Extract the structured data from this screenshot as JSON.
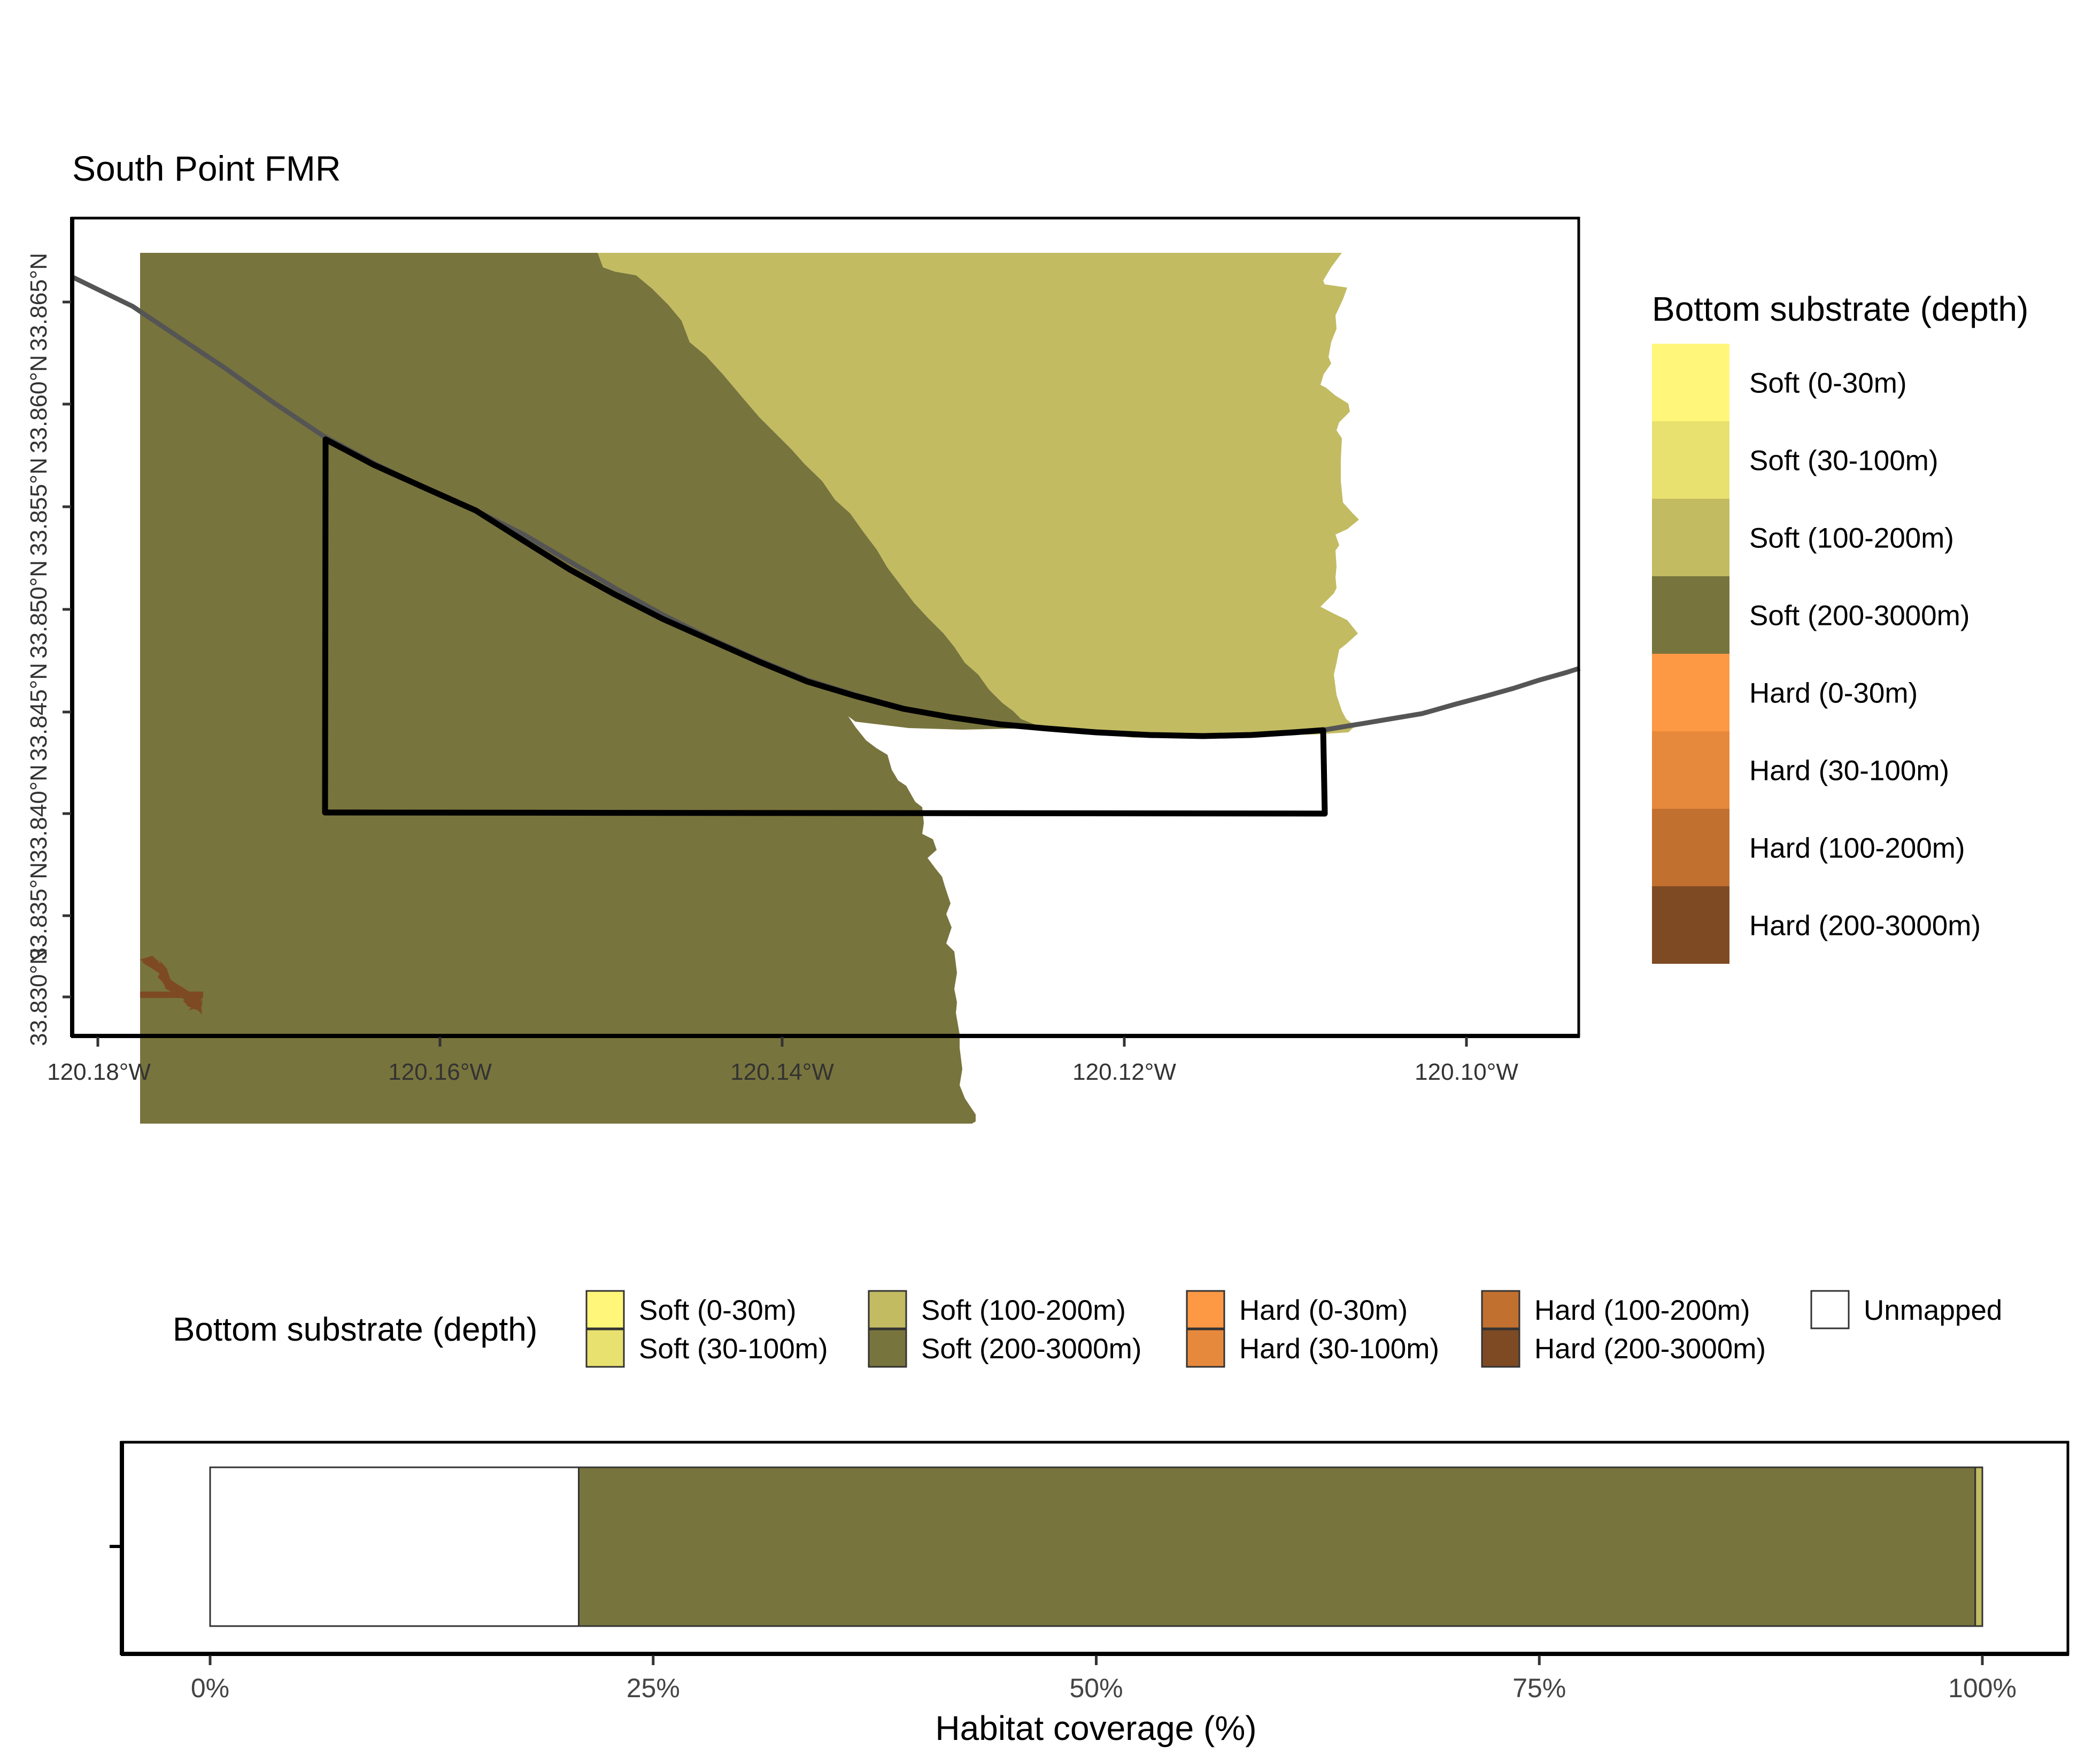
{
  "map": {
    "title": "South Point FMR",
    "x_ticks": [
      "120.18°W",
      "120.16°W",
      "120.14°W",
      "120.12°W",
      "120.10°W"
    ],
    "y_ticks": [
      "33.830°N",
      "33.835°N",
      "33.840°N",
      "33.845°N",
      "33.850°N",
      "33.855°N",
      "33.860°N",
      "33.865°N"
    ],
    "legend": {
      "title": "Bottom substrate (depth)",
      "items": [
        {
          "label": "Soft (0-30m)",
          "color": "#FFF67A"
        },
        {
          "label": "Soft (30-100m)",
          "color": "#E8E16F"
        },
        {
          "label": "Soft (100-200m)",
          "color": "#C2BB62"
        },
        {
          "label": "Soft (200-3000m)",
          "color": "#78743D"
        },
        {
          "label": "Hard (0-30m)",
          "color": "#FD9844"
        },
        {
          "label": "Hard (30-100m)",
          "color": "#E7893C"
        },
        {
          "label": "Hard (100-200m)",
          "color": "#C1702F"
        },
        {
          "label": "Hard (200-3000m)",
          "color": "#7E4A23"
        }
      ]
    }
  },
  "coverage": {
    "legend_title": "Bottom substrate (depth)",
    "legend_items": [
      {
        "label": "Soft (0-30m)",
        "color": "#FFF67A"
      },
      {
        "label": "Soft (30-100m)",
        "color": "#E8E16F"
      },
      {
        "label": "Soft (100-200m)",
        "color": "#C2BB62"
      },
      {
        "label": "Soft (200-3000m)",
        "color": "#78743D"
      },
      {
        "label": "Hard (0-30m)",
        "color": "#FD9844"
      },
      {
        "label": "Hard (30-100m)",
        "color": "#E7893C"
      },
      {
        "label": "Hard (100-200m)",
        "color": "#C1702F"
      },
      {
        "label": "Hard (200-3000m)",
        "color": "#7E4A23"
      },
      {
        "label": "Unmapped",
        "color": "#FFFFFF"
      }
    ],
    "xlabel": "Habitat coverage (%)",
    "x_ticks": [
      "0%",
      "25%",
      "50%",
      "75%",
      "100%"
    ]
  },
  "chart_data": {
    "type": "bar",
    "orientation": "horizontal",
    "stacked": true,
    "xlabel": "Habitat coverage (%)",
    "xlim": [
      0,
      100
    ],
    "series": [
      {
        "name": "Unmapped",
        "value": 20.8,
        "color": "#FFFFFF"
      },
      {
        "name": "Soft (200-3000m)",
        "value": 78.8,
        "color": "#78743D"
      },
      {
        "name": "Soft (100-200m)",
        "value": 0.4,
        "color": "#C2BB62"
      }
    ]
  }
}
